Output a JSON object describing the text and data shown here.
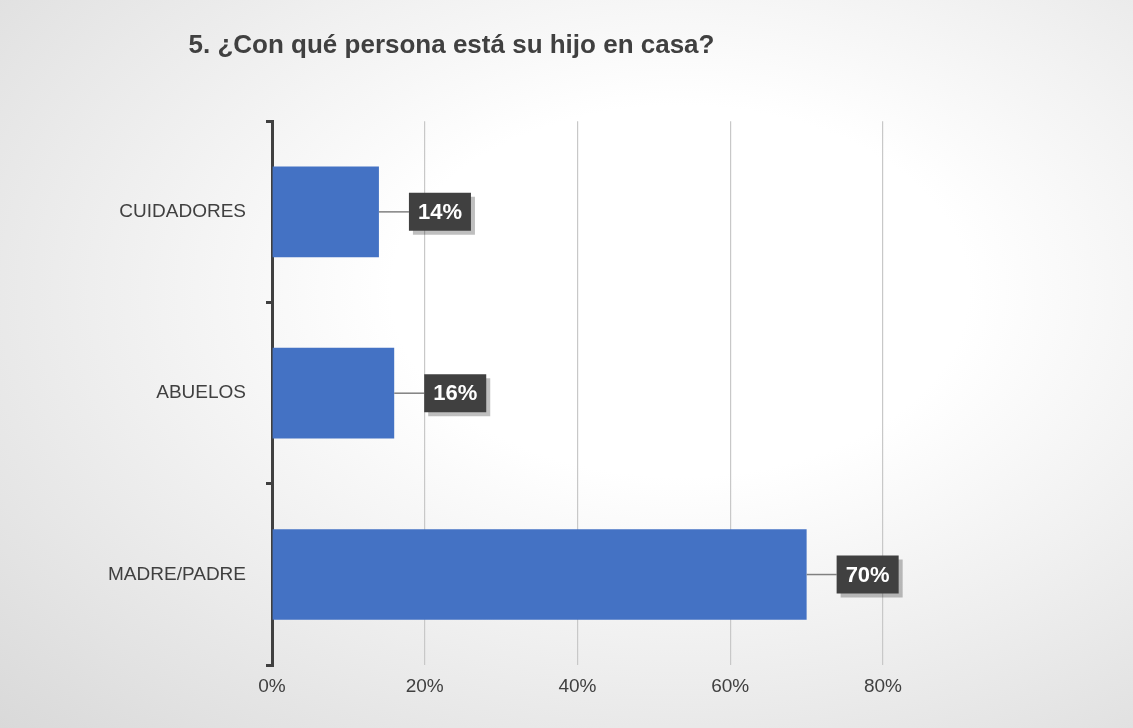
{
  "chart_data": {
    "type": "bar",
    "orientation": "horizontal",
    "title": "5. ¿Con qué persona está su hijo en casa?",
    "categories": [
      "CUIDADORES",
      "ABUELOS",
      "MADRE/PADRE"
    ],
    "values": [
      14,
      16,
      70
    ],
    "value_labels": [
      "14%",
      "16%",
      "70%"
    ],
    "color": "#4472c4",
    "xlim": [
      0,
      80
    ],
    "xticks": [
      {
        "value": 0,
        "label": "0%"
      },
      {
        "value": 20,
        "label": "20%"
      },
      {
        "value": 40,
        "label": "40%"
      },
      {
        "value": 60,
        "label": "60%"
      },
      {
        "value": 80,
        "label": "80%"
      }
    ],
    "grid": "x",
    "legend": false
  }
}
